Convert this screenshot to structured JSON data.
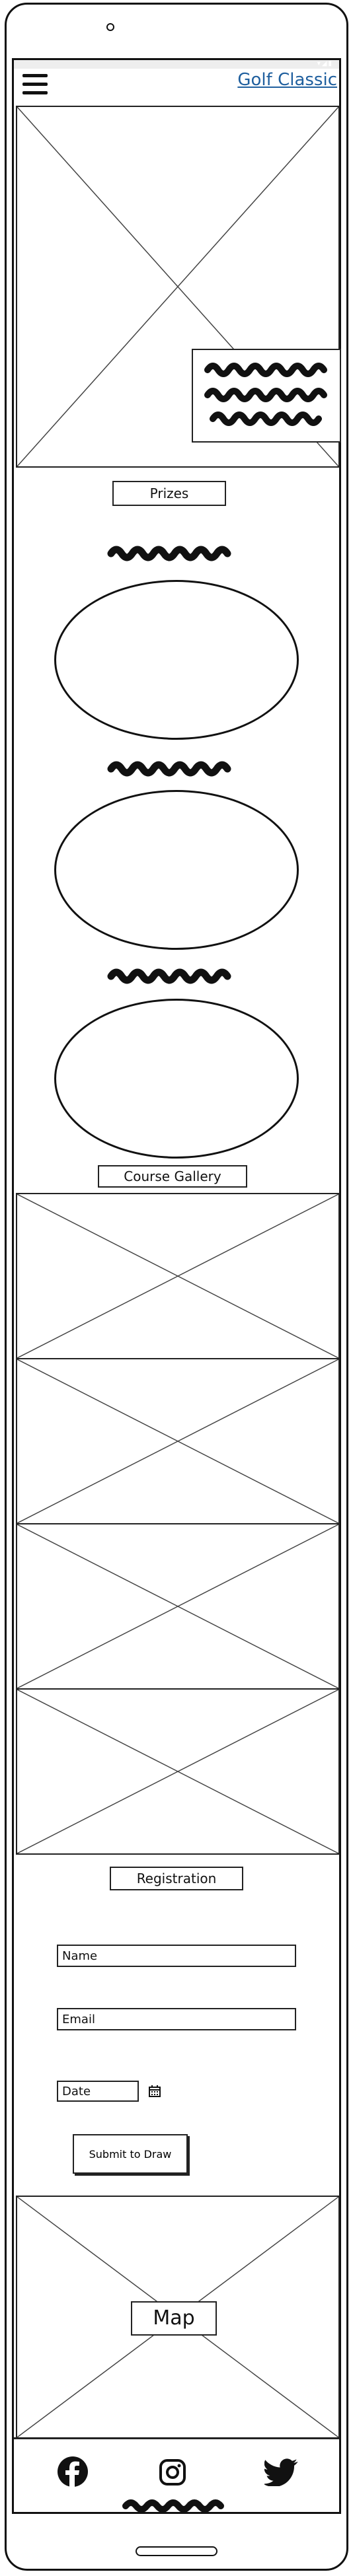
{
  "header": {
    "menu_icon": "hamburger-menu-icon",
    "brand_link": "Golf Classic"
  },
  "hero": {
    "image_icon": "image-placeholder-icon"
  },
  "prizes": {
    "heading": "Prizes",
    "items": [
      {
        "image_icon": "prize-oval"
      },
      {
        "image_icon": "prize-oval"
      },
      {
        "image_icon": "prize-oval"
      }
    ]
  },
  "gallery": {
    "heading": "Course Gallery",
    "images": [
      {
        "image_icon": "image-placeholder-icon"
      },
      {
        "image_icon": "image-placeholder-icon"
      },
      {
        "image_icon": "image-placeholder-icon"
      },
      {
        "image_icon": "image-placeholder-icon"
      }
    ]
  },
  "registration": {
    "heading": "Registration",
    "name_placeholder": "Name",
    "email_placeholder": "Email",
    "date_placeholder": "Date",
    "calendar_icon": "calendar-icon",
    "submit_label": "Submit to Draw"
  },
  "map": {
    "label": "Map"
  },
  "footer": {
    "social": [
      {
        "icon": "facebook-icon"
      },
      {
        "icon": "instagram-icon"
      },
      {
        "icon": "twitter-icon"
      }
    ]
  }
}
